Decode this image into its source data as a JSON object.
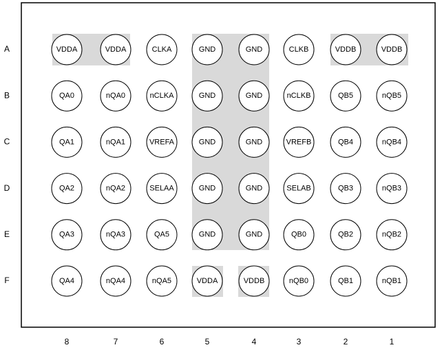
{
  "columns": [
    "8",
    "7",
    "6",
    "5",
    "4",
    "3",
    "2",
    "1"
  ],
  "rows": [
    {
      "label": "A",
      "pins": [
        "VDDA",
        "VDDA",
        "CLKA",
        "GND",
        "GND",
        "CLKB",
        "VDDB",
        "VDDB"
      ]
    },
    {
      "label": "B",
      "pins": [
        "QA0",
        "nQA0",
        "nCLKA",
        "GND",
        "GND",
        "nCLKB",
        "QB5",
        "nQB5"
      ]
    },
    {
      "label": "C",
      "pins": [
        "QA1",
        "nQA1",
        "VREFA",
        "GND",
        "GND",
        "VREFB",
        "QB4",
        "nQB4"
      ]
    },
    {
      "label": "D",
      "pins": [
        "QA2",
        "nQA2",
        "SELAA",
        "GND",
        "GND",
        "SELAB",
        "QB3",
        "nQB3"
      ]
    },
    {
      "label": "E",
      "pins": [
        "QA3",
        "nQA3",
        "QA5",
        "GND",
        "GND",
        "QB0",
        "QB2",
        "nQB2"
      ]
    },
    {
      "label": "F",
      "pins": [
        "QA4",
        "nQA4",
        "nQA5",
        "VDDA",
        "VDDB",
        "nQB0",
        "QB1",
        "nQB1"
      ]
    }
  ]
}
